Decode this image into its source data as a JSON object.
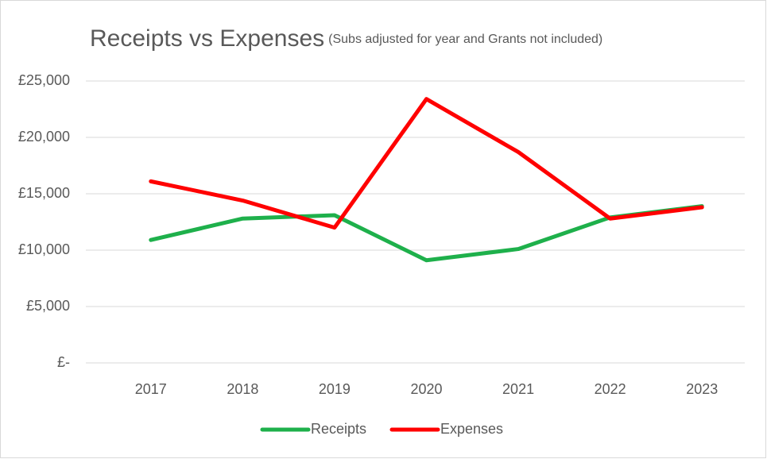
{
  "chart_data": {
    "type": "line",
    "title": "Receipts vs Expenses",
    "subtitle": "(Subs adjusted for year and Grants not included)",
    "categories": [
      "2017",
      "2018",
      "2019",
      "2020",
      "2021",
      "2022",
      "2023"
    ],
    "series": [
      {
        "name": "Receipts",
        "color": "#1eb04b",
        "values": [
          10900,
          12800,
          13100,
          9100,
          10100,
          12900,
          13900
        ]
      },
      {
        "name": "Expenses",
        "color": "#ff0000",
        "values": [
          16100,
          14400,
          12000,
          23400,
          18700,
          12800,
          13800
        ]
      }
    ],
    "ylim": [
      0,
      25000
    ],
    "yticks": [
      {
        "value": 0,
        "label": "£-"
      },
      {
        "value": 5000,
        "label": "£5,000"
      },
      {
        "value": 10000,
        "label": "£10,000"
      },
      {
        "value": 15000,
        "label": "£15,000"
      },
      {
        "value": 20000,
        "label": "£20,000"
      },
      {
        "value": 25000,
        "label": "£25,000"
      }
    ],
    "grid": true,
    "legend": "bottom"
  }
}
